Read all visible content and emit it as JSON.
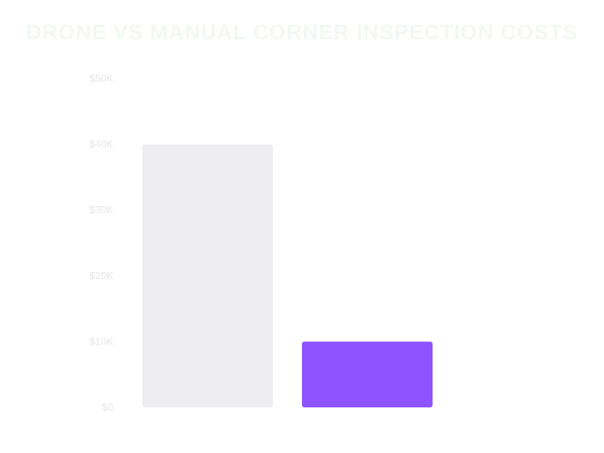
{
  "chart_data": {
    "type": "bar",
    "title": "DRONE VS MANUAL CORNER INSPECTION COSTS",
    "categories": [
      "",
      ""
    ],
    "values": [
      40000,
      10000
    ],
    "bar_colors": [
      "#eeeef2",
      "#8f52ff"
    ],
    "title_color": "#f2f8f2",
    "ylim": [
      0,
      50000
    ],
    "yticks": [
      0,
      10000,
      20000,
      30000,
      40000,
      50000
    ],
    "ytick_labels": [
      "$0",
      "$10K",
      "$20K",
      "$30K",
      "$40K",
      "$50K"
    ],
    "grid": false,
    "legend": "none"
  }
}
